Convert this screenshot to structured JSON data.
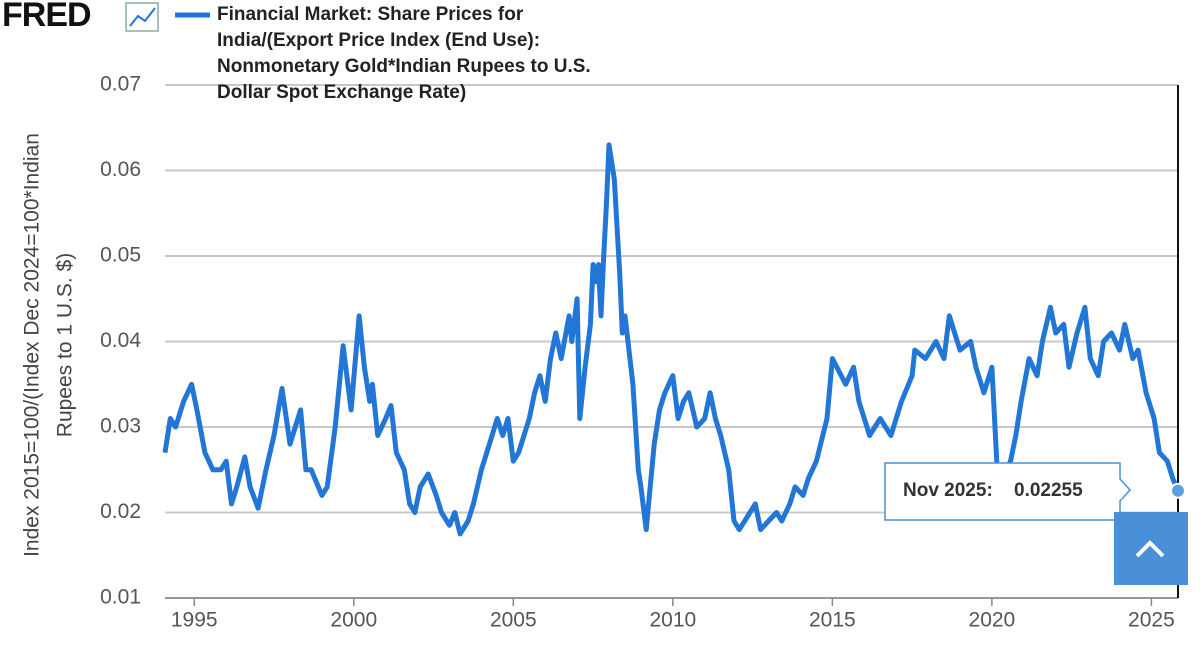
{
  "brand": "FRED",
  "chart_data": {
    "type": "line",
    "ylabel": [
      "Index 2015=100/(Index Dec 2024=100*Indian",
      "Rupees to 1 U.S. $)"
    ],
    "ylim": [
      0.01,
      0.07
    ],
    "yticks": [
      0.01,
      0.02,
      0.03,
      0.04,
      0.05,
      0.06,
      0.07
    ],
    "xlim": [
      "1994-02",
      "2025-11"
    ],
    "xticks": [
      1995,
      2000,
      2005,
      2010,
      2015,
      2020,
      2025
    ],
    "grid": true,
    "x": [
      "1994-02",
      "1994-04",
      "1994-06",
      "1994-09",
      "1994-12",
      "1995-02",
      "1995-05",
      "1995-08",
      "1995-11",
      "1996-01",
      "1996-03",
      "1996-05",
      "1996-08",
      "1996-10",
      "1997-01",
      "1997-04",
      "1997-07",
      "1997-10",
      "1998-01",
      "1998-05",
      "1998-07",
      "1998-09",
      "1999-01",
      "1999-03",
      "1999-06",
      "1999-09",
      "1999-12",
      "2000-03",
      "2000-05",
      "2000-07",
      "2000-08",
      "2000-10",
      "2001-01",
      "2001-03",
      "2001-05",
      "2001-08",
      "2001-10",
      "2001-12",
      "2002-02",
      "2002-05",
      "2002-08",
      "2002-10",
      "2003-01",
      "2003-03",
      "2003-05",
      "2003-08",
      "2003-10",
      "2004-01",
      "2004-04",
      "2004-07",
      "2004-09",
      "2004-11",
      "2005-01",
      "2005-03",
      "2005-07",
      "2005-09",
      "2005-11",
      "2006-01",
      "2006-03",
      "2006-05",
      "2006-07",
      "2006-10",
      "2006-11",
      "2007-01",
      "2007-02",
      "2007-04",
      "2007-06",
      "2007-07",
      "2007-08",
      "2007-09",
      "2007-10",
      "2007-11",
      "2007-12",
      "2008-01",
      "2008-03",
      "2008-05",
      "2008-06",
      "2008-07",
      "2008-10",
      "2008-12",
      "2009-01",
      "2009-03",
      "2009-06",
      "2009-08",
      "2009-10",
      "2010-01",
      "2010-03",
      "2010-05",
      "2010-07",
      "2010-10",
      "2011-01",
      "2011-03",
      "2011-05",
      "2011-07",
      "2011-10",
      "2011-12",
      "2012-02",
      "2012-05",
      "2012-08",
      "2012-10",
      "2013-01",
      "2013-04",
      "2013-06",
      "2013-09",
      "2013-11",
      "2014-02",
      "2014-04",
      "2014-07",
      "2014-11",
      "2015-01",
      "2015-06",
      "2015-09",
      "2015-11",
      "2016-03",
      "2016-07",
      "2016-11",
      "2017-03",
      "2017-07",
      "2017-08",
      "2017-12",
      "2018-04",
      "2018-07",
      "2018-09",
      "2019-01",
      "2019-05",
      "2019-07",
      "2019-10",
      "2020-01",
      "2020-03",
      "2020-05",
      "2020-08",
      "2020-10",
      "2020-12",
      "2021-03",
      "2021-06",
      "2021-08",
      "2021-11",
      "2022-01",
      "2022-04",
      "2022-06",
      "2022-09",
      "2022-12",
      "2023-02",
      "2023-05",
      "2023-07",
      "2023-10",
      "2024-01",
      "2024-03",
      "2024-06",
      "2024-08",
      "2024-11",
      "2025-02",
      "2025-04",
      "2025-07",
      "2025-09",
      "2025-11"
    ],
    "series": [
      {
        "name": "Financial Market: Share Prices for India/(Export Price Index (End Use): Nonmonetary Gold*Indian Rupees to U.S. Dollar Spot Exchange Rate)",
        "color": "#2176d6",
        "values": [
          0.027,
          0.031,
          0.03,
          0.033,
          0.035,
          0.032,
          0.027,
          0.025,
          0.025,
          0.026,
          0.021,
          0.023,
          0.0265,
          0.023,
          0.0205,
          0.025,
          0.029,
          0.0345,
          0.028,
          0.032,
          0.025,
          0.025,
          0.022,
          0.023,
          0.03,
          0.0395,
          0.032,
          0.043,
          0.037,
          0.033,
          0.035,
          0.029,
          0.031,
          0.0325,
          0.027,
          0.025,
          0.021,
          0.02,
          0.023,
          0.0245,
          0.022,
          0.02,
          0.0185,
          0.02,
          0.0175,
          0.019,
          0.021,
          0.025,
          0.028,
          0.031,
          0.029,
          0.031,
          0.026,
          0.027,
          0.031,
          0.034,
          0.036,
          0.033,
          0.038,
          0.041,
          0.038,
          0.043,
          0.04,
          0.045,
          0.031,
          0.037,
          0.042,
          0.049,
          0.047,
          0.049,
          0.043,
          0.05,
          0.056,
          0.063,
          0.059,
          0.048,
          0.041,
          0.043,
          0.035,
          0.025,
          0.023,
          0.018,
          0.028,
          0.032,
          0.034,
          0.036,
          0.031,
          0.033,
          0.034,
          0.03,
          0.031,
          0.034,
          0.031,
          0.029,
          0.025,
          0.019,
          0.018,
          0.0195,
          0.021,
          0.018,
          0.019,
          0.02,
          0.019,
          0.021,
          0.023,
          0.022,
          0.024,
          0.026,
          0.031,
          0.038,
          0.035,
          0.037,
          0.033,
          0.029,
          0.031,
          0.029,
          0.033,
          0.036,
          0.039,
          0.038,
          0.04,
          0.038,
          0.043,
          0.039,
          0.04,
          0.037,
          0.034,
          0.037,
          0.025,
          0.024,
          0.026,
          0.029,
          0.033,
          0.038,
          0.036,
          0.04,
          0.044,
          0.041,
          0.042,
          0.037,
          0.041,
          0.044,
          0.038,
          0.036,
          0.04,
          0.041,
          0.039,
          0.042,
          0.038,
          0.039,
          0.034,
          0.031,
          0.027,
          0.026,
          0.024,
          0.02255
        ]
      }
    ],
    "tooltip": {
      "label": "Nov 2025:"
    }
  }
}
